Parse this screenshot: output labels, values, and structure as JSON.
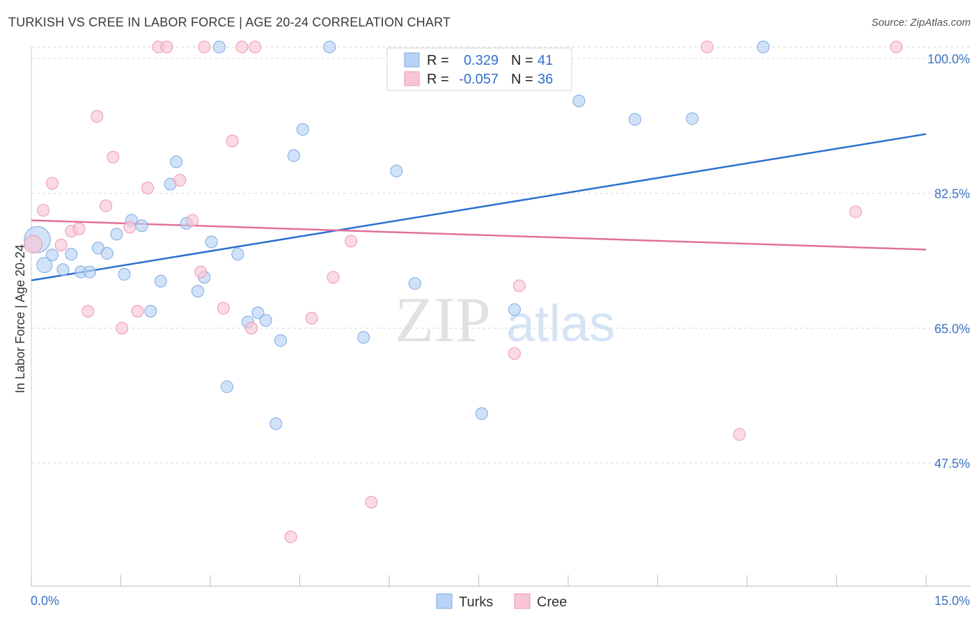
{
  "title": "TURKISH VS CREE IN LABOR FORCE | AGE 20-24 CORRELATION CHART",
  "source": "Source: ZipAtlas.com",
  "colors": {
    "turks_fill": "#b8d3f5",
    "turks_stroke": "#7aa9e0",
    "turks_line": "#2a6fd0",
    "cree_fill": "#f8c6d6",
    "cree_stroke": "#ee96b4",
    "cree_line": "#e0709a",
    "tick_text": "#3a72c4",
    "grid": "#d9d9d9"
  },
  "chart_data": {
    "type": "scatter",
    "title": "TURKISH VS CREE IN LABOR FORCE | AGE 20-24 CORRELATION CHART",
    "xlabel": "",
    "ylabel": "In Labor Force | Age 20-24",
    "xlim": [
      0,
      15
    ],
    "ylim": [
      31.5,
      102
    ],
    "x_tick_labels": [
      "0.0%",
      "15.0%"
    ],
    "y_ticks": [
      47.5,
      65.0,
      82.5,
      100.0
    ],
    "y_tick_labels": [
      "47.5%",
      "65.0%",
      "82.5%",
      "100.0%"
    ],
    "legend_stats": [
      {
        "name": "Turks",
        "r_label": "R =",
        "r_value": "0.329",
        "n_label": "N =",
        "n_value": "41"
      },
      {
        "name": "Cree",
        "r_label": "R =",
        "r_value": "-0.057",
        "n_label": "N =",
        "n_value": "36"
      }
    ],
    "series": [
      {
        "name": "Turks",
        "points": [
          [
            0.1,
            76.5,
            2.2
          ],
          [
            0.22,
            73.2,
            1.3
          ],
          [
            0.35,
            74.5,
            1
          ],
          [
            0.53,
            72.6,
            1
          ],
          [
            0.67,
            74.6,
            1
          ],
          [
            0.83,
            72.3,
            1
          ],
          [
            0.98,
            72.3,
            1
          ],
          [
            1.12,
            75.4,
            1
          ],
          [
            1.27,
            74.7,
            1
          ],
          [
            1.43,
            77.2,
            1
          ],
          [
            1.56,
            72.0,
            1
          ],
          [
            1.68,
            79.0,
            1
          ],
          [
            1.85,
            78.3,
            1
          ],
          [
            2.17,
            71.1,
            1
          ],
          [
            2.0,
            67.2,
            1
          ],
          [
            2.33,
            83.7,
            1
          ],
          [
            2.43,
            86.6,
            1
          ],
          [
            2.6,
            78.6,
            1
          ],
          [
            2.79,
            69.8,
            1
          ],
          [
            2.9,
            71.6,
            1
          ],
          [
            3.02,
            76.2,
            1
          ],
          [
            3.28,
            57.4,
            1
          ],
          [
            3.46,
            74.6,
            1
          ],
          [
            3.63,
            65.8,
            1
          ],
          [
            3.8,
            67.0,
            1
          ],
          [
            3.93,
            66.0,
            1
          ],
          [
            4.1,
            52.6,
            1
          ],
          [
            4.18,
            63.4,
            1
          ],
          [
            4.4,
            87.4,
            1
          ],
          [
            4.55,
            90.8,
            1
          ],
          [
            5.57,
            63.8,
            1
          ],
          [
            5.0,
            101.5,
            1
          ],
          [
            3.15,
            101.5,
            1
          ],
          [
            6.12,
            85.4,
            1
          ],
          [
            6.43,
            70.8,
            1
          ],
          [
            7.55,
            53.9,
            1
          ],
          [
            8.1,
            67.4,
            1
          ],
          [
            9.18,
            94.5,
            1
          ],
          [
            10.12,
            92.1,
            1
          ],
          [
            11.08,
            92.2,
            1
          ],
          [
            12.27,
            101.5,
            1
          ]
        ]
      },
      {
        "name": "Cree",
        "points": [
          [
            0.03,
            75.9,
            1.5
          ],
          [
            0.2,
            80.3,
            1
          ],
          [
            0.35,
            83.8,
            1
          ],
          [
            0.5,
            75.8,
            1
          ],
          [
            0.67,
            77.6,
            1
          ],
          [
            0.8,
            77.9,
            1
          ],
          [
            0.95,
            67.2,
            1
          ],
          [
            1.1,
            92.5,
            1
          ],
          [
            1.25,
            80.9,
            1
          ],
          [
            1.37,
            87.2,
            1
          ],
          [
            1.52,
            65.0,
            1
          ],
          [
            1.65,
            78.1,
            1
          ],
          [
            1.78,
            67.2,
            1
          ],
          [
            1.95,
            83.2,
            1
          ],
          [
            2.13,
            101.5,
            1
          ],
          [
            2.27,
            101.5,
            1
          ],
          [
            2.49,
            84.2,
            1
          ],
          [
            2.7,
            79.0,
            1
          ],
          [
            2.84,
            72.3,
            1
          ],
          [
            2.9,
            101.5,
            1
          ],
          [
            3.22,
            67.6,
            1
          ],
          [
            3.37,
            89.3,
            1
          ],
          [
            3.53,
            101.5,
            1
          ],
          [
            3.75,
            101.5,
            1
          ],
          [
            3.69,
            65.0,
            1
          ],
          [
            4.35,
            37.9,
            1
          ],
          [
            4.7,
            66.3,
            1
          ],
          [
            5.06,
            71.6,
            1
          ],
          [
            5.36,
            76.3,
            1
          ],
          [
            5.7,
            42.4,
            1
          ],
          [
            8.1,
            61.7,
            1
          ],
          [
            8.18,
            70.5,
            1
          ],
          [
            11.33,
            101.5,
            1
          ],
          [
            11.87,
            51.2,
            1
          ],
          [
            13.82,
            80.1,
            1
          ],
          [
            14.5,
            101.5,
            1
          ]
        ]
      }
    ],
    "trend_lines": [
      {
        "name": "Turks",
        "x": [
          0,
          15
        ],
        "y": [
          71.2,
          90.2
        ]
      },
      {
        "name": "Cree",
        "x": [
          0,
          15
        ],
        "y": [
          79.0,
          75.2
        ]
      }
    ],
    "legend": [
      "Turks",
      "Cree"
    ],
    "watermark": {
      "left": "ZIP",
      "right": "atlas"
    }
  }
}
